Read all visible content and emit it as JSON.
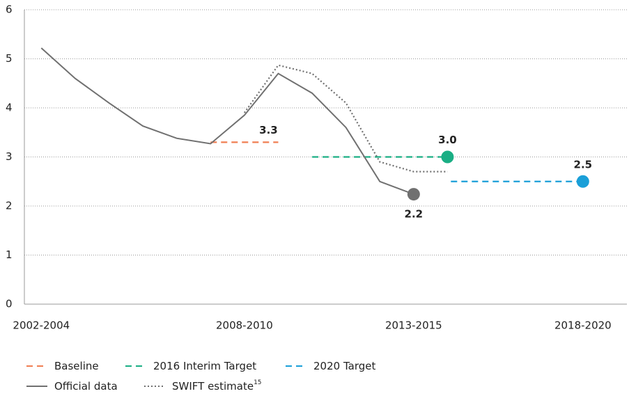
{
  "chart_data": {
    "type": "line",
    "xlim": [
      2001.5,
      2019.3
    ],
    "xticks": [
      {
        "value": 2002,
        "label": "2002-2004"
      },
      {
        "value": 2008,
        "label": "2008-2010"
      },
      {
        "value": 2013,
        "label": "2013-2015"
      },
      {
        "value": 2018,
        "label": "2018-2020"
      }
    ],
    "ylim": [
      0,
      6
    ],
    "yticks": [
      0,
      1,
      2,
      3,
      4,
      5,
      6
    ],
    "grid": true,
    "series": [
      {
        "name": "Baseline",
        "color": "#f07e52",
        "style": "dashed",
        "x": [
          2007,
          2009
        ],
        "values": [
          3.3,
          3.3
        ],
        "value_labels": [
          null,
          "3.3"
        ],
        "end_marker": false
      },
      {
        "name": "2016 Interim Target",
        "color": "#1aae84",
        "style": "dashed",
        "x": [
          2010,
          2014
        ],
        "values": [
          3.0,
          3.0
        ],
        "value_labels": [
          null,
          "3.0"
        ],
        "end_marker": true
      },
      {
        "name": "2020 Target",
        "color": "#1a9fd8",
        "style": "dashed",
        "x": [
          2014.1,
          2018
        ],
        "values": [
          2.5,
          2.5
        ],
        "value_labels": [
          null,
          "2.5"
        ],
        "end_marker": true
      },
      {
        "name": "Official data",
        "color": "#707070",
        "style": "solid",
        "x": [
          2002,
          2003,
          2004,
          2005,
          2006,
          2007,
          2008,
          2009,
          2010,
          2011,
          2012,
          2013
        ],
        "values": [
          5.22,
          4.6,
          4.1,
          3.63,
          3.38,
          3.27,
          3.85,
          4.7,
          4.3,
          3.6,
          2.5,
          2.24
        ],
        "value_labels": [
          null,
          null,
          null,
          null,
          null,
          null,
          null,
          null,
          null,
          null,
          null,
          "2.2"
        ],
        "end_marker": true
      },
      {
        "name": "SWIFT estimate",
        "footnote_ref": "15",
        "color": "#707070",
        "style": "dotted",
        "x": [
          2008,
          2009,
          2010,
          2011,
          2012,
          2013,
          2014
        ],
        "values": [
          3.9,
          4.87,
          4.7,
          4.1,
          2.9,
          2.7,
          2.7
        ],
        "end_marker": false
      }
    ]
  }
}
